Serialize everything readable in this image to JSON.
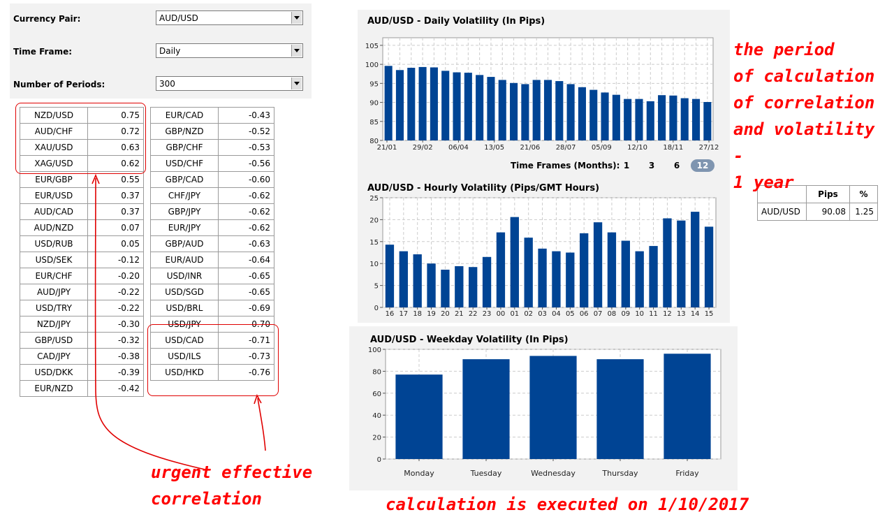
{
  "settings": {
    "currency_pair": {
      "label": "Currency Pair:",
      "value": "AUD/USD"
    },
    "time_frame": {
      "label": "Time Frame:",
      "value": "Daily"
    },
    "periods": {
      "label": "Number of Periods:",
      "value": "300"
    }
  },
  "correlation": {
    "left": [
      {
        "pair": "NZD/USD",
        "value": "0.75"
      },
      {
        "pair": "AUD/CHF",
        "value": "0.72"
      },
      {
        "pair": "XAU/USD",
        "value": "0.63"
      },
      {
        "pair": "XAG/USD",
        "value": "0.62"
      },
      {
        "pair": "EUR/GBP",
        "value": "0.55"
      },
      {
        "pair": "EUR/USD",
        "value": "0.37"
      },
      {
        "pair": "AUD/CAD",
        "value": "0.37"
      },
      {
        "pair": "AUD/NZD",
        "value": "0.07"
      },
      {
        "pair": "USD/RUB",
        "value": "0.05"
      },
      {
        "pair": "USD/SEK",
        "value": "-0.12"
      },
      {
        "pair": "EUR/CHF",
        "value": "-0.20"
      },
      {
        "pair": "AUD/JPY",
        "value": "-0.22"
      },
      {
        "pair": "USD/TRY",
        "value": "-0.22"
      },
      {
        "pair": "NZD/JPY",
        "value": "-0.30"
      },
      {
        "pair": "GBP/USD",
        "value": "-0.32"
      },
      {
        "pair": "CAD/JPY",
        "value": "-0.38"
      },
      {
        "pair": "USD/DKK",
        "value": "-0.39"
      },
      {
        "pair": "EUR/NZD",
        "value": "-0.42"
      }
    ],
    "right": [
      {
        "pair": "EUR/CAD",
        "value": "-0.43"
      },
      {
        "pair": "GBP/NZD",
        "value": "-0.52"
      },
      {
        "pair": "GBP/CHF",
        "value": "-0.53"
      },
      {
        "pair": "USD/CHF",
        "value": "-0.56"
      },
      {
        "pair": "GBP/CAD",
        "value": "-0.60"
      },
      {
        "pair": "CHF/JPY",
        "value": "-0.62"
      },
      {
        "pair": "GBP/JPY",
        "value": "-0.62"
      },
      {
        "pair": "EUR/JPY",
        "value": "-0.62"
      },
      {
        "pair": "GBP/AUD",
        "value": "-0.63"
      },
      {
        "pair": "EUR/AUD",
        "value": "-0.64"
      },
      {
        "pair": "USD/INR",
        "value": "-0.65"
      },
      {
        "pair": "USD/SGD",
        "value": "-0.65"
      },
      {
        "pair": "USD/BRL",
        "value": "-0.69"
      },
      {
        "pair": "USD/JPY",
        "value": "-0.70"
      },
      {
        "pair": "USD/CAD",
        "value": "-0.71"
      },
      {
        "pair": "USD/ILS",
        "value": "-0.73"
      },
      {
        "pair": "USD/HKD",
        "value": "-0.76"
      }
    ]
  },
  "chart_data": [
    {
      "type": "bar",
      "title": "AUD/USD - Daily Volatility (In Pips)",
      "ylim": [
        80,
        107
      ],
      "yticks": [
        80,
        85,
        90,
        95,
        100,
        105
      ],
      "grid": true,
      "x_labels": [
        "21/01",
        "29/02",
        "06/04",
        "13/05",
        "21/06",
        "28/07",
        "05/09",
        "12/10",
        "18/11",
        "27/12"
      ],
      "values": [
        99.6,
        98.5,
        99.1,
        99.3,
        99.2,
        98.3,
        97.9,
        97.8,
        97.2,
        96.7,
        95.9,
        95.1,
        94.8,
        95.9,
        95.9,
        95.6,
        94.8,
        94.0,
        93.3,
        92.6,
        92.0,
        90.9,
        90.9,
        90.3,
        91.9,
        91.8,
        91.1,
        90.9,
        90.1
      ],
      "color": "#004494"
    },
    {
      "type": "bar",
      "title": "AUD/USD - Hourly Volatility (Pips/GMT Hours)",
      "ylim": [
        0,
        25
      ],
      "yticks": [
        0,
        5,
        10,
        15,
        20,
        25
      ],
      "grid": true,
      "categories": [
        "16",
        "17",
        "18",
        "19",
        "20",
        "21",
        "22",
        "23",
        "00",
        "01",
        "02",
        "03",
        "04",
        "05",
        "06",
        "07",
        "08",
        "09",
        "10",
        "11",
        "12",
        "13",
        "14",
        "15"
      ],
      "values": [
        14.3,
        12.8,
        12.1,
        10.0,
        8.6,
        9.4,
        9.2,
        11.5,
        17.1,
        20.6,
        15.9,
        13.4,
        12.8,
        12.5,
        16.9,
        19.4,
        17.1,
        15.2,
        12.8,
        14.0,
        20.3,
        19.8,
        21.8,
        18.4
      ],
      "color": "#004494"
    },
    {
      "type": "bar",
      "title": "AUD/USD - Weekday Volatility (In Pips)",
      "ylim": [
        0,
        100
      ],
      "yticks": [
        0,
        20,
        40,
        60,
        80,
        100
      ],
      "grid": true,
      "categories": [
        "Monday",
        "Tuesday",
        "Wednesday",
        "Thursday",
        "Friday"
      ],
      "values": [
        77,
        91,
        94,
        91,
        96
      ],
      "color": "#004494"
    }
  ],
  "timeframes": {
    "label": "Time Frames (Months):",
    "options": [
      "1",
      "3",
      "6"
    ],
    "active": "12"
  },
  "summary": {
    "headers": [
      "",
      "Pips",
      "%"
    ],
    "row": {
      "pair": "AUD/USD",
      "pips": "90.08",
      "pct": "1.25"
    }
  },
  "annotations": {
    "period_lines": [
      "the period",
      "of calculation",
      "of correlation",
      "and volatility -",
      "1 year"
    ],
    "correlation_lines": [
      "urgent effective",
      "correlation"
    ],
    "calculation": "calculation is executed on 1/10/2017"
  },
  "colors": {
    "bar": "#004494",
    "annotation": "#ff0000",
    "panel": "#f2f2f2"
  }
}
